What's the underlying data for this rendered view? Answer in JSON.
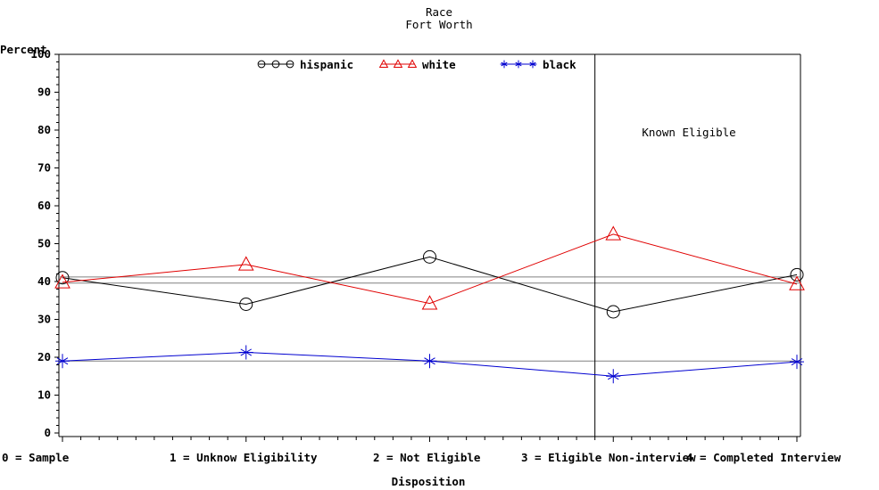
{
  "chart_data": {
    "type": "line",
    "title": "Race",
    "subtitle": "Fort Worth",
    "xlabel": "Disposition",
    "ylabel": "Percent",
    "ylim": [
      0,
      100
    ],
    "xlim": [
      0,
      4
    ],
    "y_ticks": [
      "0",
      "10",
      "20",
      "30",
      "40",
      "50",
      "60",
      "70",
      "80",
      "90",
      "100"
    ],
    "y_tick_values": [
      0,
      10,
      20,
      30,
      40,
      50,
      60,
      70,
      80,
      90,
      100
    ],
    "x_tick_labels": [
      "0 = Sample",
      "1 = Unknow Eligibility",
      "2 = Not Eligible",
      "3 = Eligible Non-interview",
      "4 = Completed Interview"
    ],
    "x": [
      0,
      1,
      2,
      3,
      4
    ],
    "series": [
      {
        "name": "hispanic",
        "color": "#000000",
        "marker": "circle",
        "values": [
          41.0,
          34.0,
          46.5,
          32.0,
          41.8
        ]
      },
      {
        "name": "white",
        "color": "#e00000",
        "marker": "triangle",
        "values": [
          39.8,
          44.5,
          34.2,
          52.5,
          39.3
        ]
      },
      {
        "name": "black",
        "color": "#0000d0",
        "marker": "star",
        "values": [
          19.0,
          21.3,
          19.0,
          15.0,
          18.8
        ]
      }
    ],
    "reference_lines": [
      {
        "y": 41.2,
        "color": "#808080"
      },
      {
        "y": 39.6,
        "color": "#808080"
      },
      {
        "y": 19.0,
        "color": "#808080"
      }
    ],
    "vertical_line_x": 2.9,
    "annotation": "Known Eligible",
    "legend_position": "top",
    "grid": false
  }
}
